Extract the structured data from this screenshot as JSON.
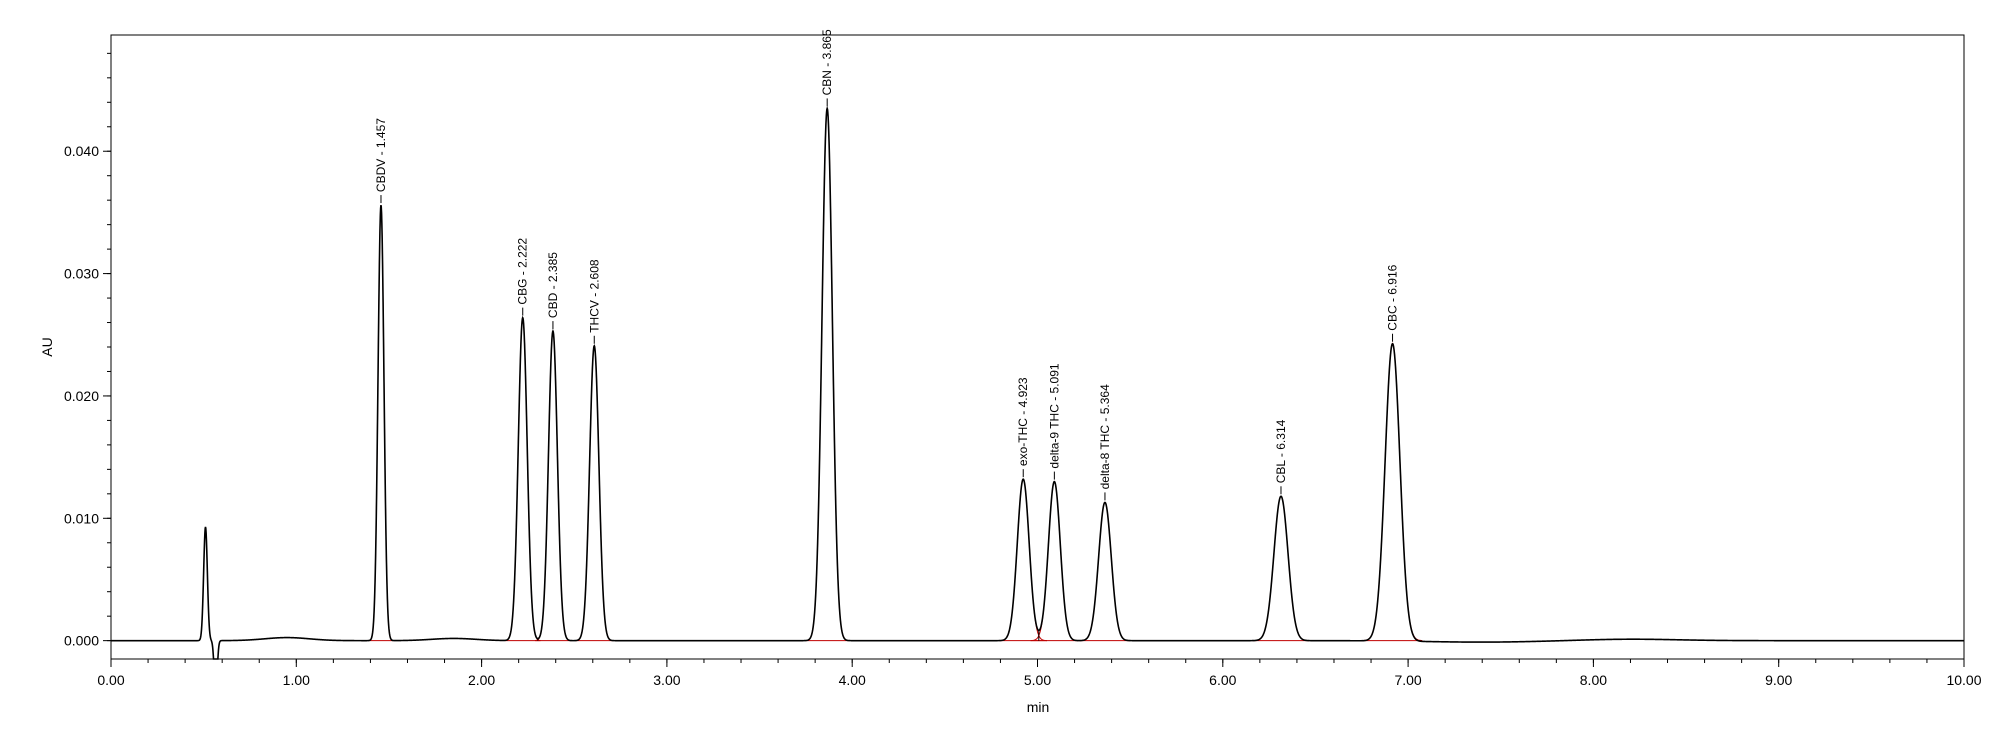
{
  "chart_data": {
    "type": "line",
    "title": "",
    "xlabel": "min",
    "ylabel": "AU",
    "xlim": [
      0.0,
      10.0
    ],
    "ylim": [
      -0.0015,
      0.0495
    ],
    "x_ticks": [
      "0.00",
      "1.00",
      "2.00",
      "3.00",
      "4.00",
      "5.00",
      "6.00",
      "7.00",
      "8.00",
      "9.00",
      "10.00"
    ],
    "y_ticks": [
      "0.000",
      "0.010",
      "0.020",
      "0.030",
      "0.040"
    ],
    "grid": false,
    "legend": "none",
    "trace_color": "#000000",
    "fit_color": "#c00000",
    "peaks": [
      {
        "label": "",
        "rt": 0.51,
        "height": 0.0093,
        "sigma": 0.01
      },
      {
        "label": "CBDV - 1.457",
        "rt": 1.457,
        "height": 0.0356,
        "sigma": 0.016
      },
      {
        "label": "CBG - 2.222",
        "rt": 2.222,
        "height": 0.0264,
        "sigma": 0.024
      },
      {
        "label": "CBD - 2.385",
        "rt": 2.385,
        "height": 0.0253,
        "sigma": 0.024
      },
      {
        "label": "THCV - 2.608",
        "rt": 2.608,
        "height": 0.0241,
        "sigma": 0.025
      },
      {
        "label": "CBN - 3.865",
        "rt": 3.865,
        "height": 0.0435,
        "sigma": 0.028
      },
      {
        "label": "exo-THC - 4.923",
        "rt": 4.923,
        "height": 0.0132,
        "sigma": 0.032
      },
      {
        "label": "delta-9 THC - 5.091",
        "rt": 5.091,
        "height": 0.013,
        "sigma": 0.032
      },
      {
        "label": "delta-8 THC - 5.364",
        "rt": 5.364,
        "height": 0.0113,
        "sigma": 0.034
      },
      {
        "label": "CBL - 6.314",
        "rt": 6.314,
        "height": 0.0118,
        "sigma": 0.038
      },
      {
        "label": "CBC - 6.916",
        "rt": 6.916,
        "height": 0.0243,
        "sigma": 0.04
      }
    ]
  }
}
